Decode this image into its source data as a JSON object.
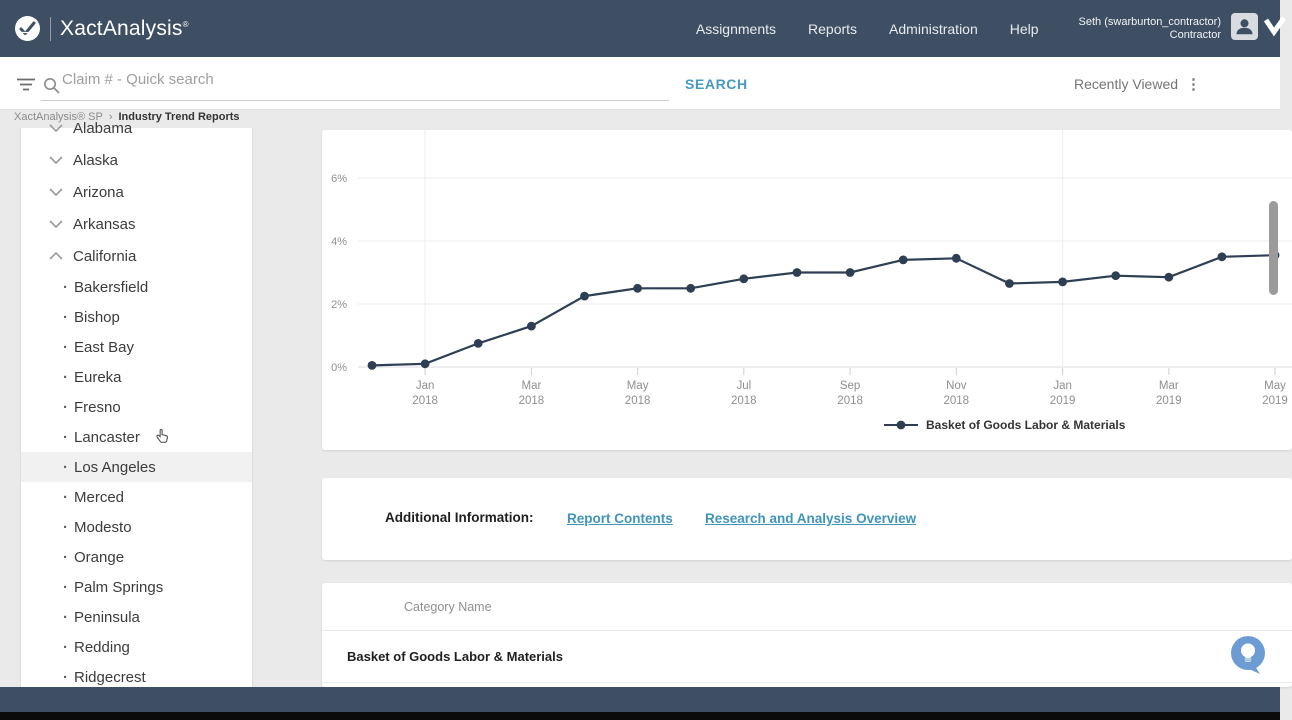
{
  "header": {
    "brand": "XactAnalysis",
    "brand_mark": "®",
    "nav": [
      "Assignments",
      "Reports",
      "Administration",
      "Help"
    ],
    "user_line1": "Seth (swarburton_contractor)",
    "user_line2": "Contractor"
  },
  "searchbar": {
    "placeholder": "Claim # - Quick search",
    "search_label": "SEARCH",
    "recently_viewed_label": "Recently Viewed",
    "kebab_glyph": "⋮"
  },
  "breadcrumb": {
    "root": "XactAnalysis® SP",
    "separator": "›",
    "current": "Industry Trend Reports"
  },
  "sidebar": {
    "items": [
      {
        "label": "Alabama",
        "type": "state",
        "chevron": "down",
        "partial": true
      },
      {
        "label": "Alaska",
        "type": "state",
        "chevron": "down"
      },
      {
        "label": "Arizona",
        "type": "state",
        "chevron": "down"
      },
      {
        "label": "Arkansas",
        "type": "state",
        "chevron": "down"
      },
      {
        "label": "California",
        "type": "state",
        "chevron": "up"
      },
      {
        "label": "Bakersfield",
        "type": "city"
      },
      {
        "label": "Bishop",
        "type": "city"
      },
      {
        "label": "East Bay",
        "type": "city"
      },
      {
        "label": "Eureka",
        "type": "city"
      },
      {
        "label": "Fresno",
        "type": "city"
      },
      {
        "label": "Lancaster",
        "type": "city",
        "cursor": true
      },
      {
        "label": "Los Angeles",
        "type": "city",
        "highlighted": true
      },
      {
        "label": "Merced",
        "type": "city"
      },
      {
        "label": "Modesto",
        "type": "city"
      },
      {
        "label": "Orange",
        "type": "city"
      },
      {
        "label": "Palm Springs",
        "type": "city"
      },
      {
        "label": "Peninsula",
        "type": "city"
      },
      {
        "label": "Redding",
        "type": "city"
      },
      {
        "label": "Ridgecrest",
        "type": "city"
      }
    ]
  },
  "chart_data": {
    "type": "line",
    "title": "",
    "categories": [
      "Dec 2017",
      "Jan 2018",
      "Feb 2018",
      "Mar 2018",
      "Apr 2018",
      "May 2018",
      "Jun 2018",
      "Jul 2018",
      "Aug 2018",
      "Sep 2018",
      "Oct 2018",
      "Nov 2018",
      "Dec 2018",
      "Jan 2019",
      "Feb 2019",
      "Mar 2019",
      "Apr 2019",
      "May 2019"
    ],
    "series": [
      {
        "name": "Basket of Goods Labor & Materials",
        "color": "#2e3f54",
        "values": [
          0.05,
          0.1,
          0.75,
          1.3,
          2.25,
          2.5,
          2.5,
          2.8,
          3.0,
          3.0,
          3.4,
          3.45,
          2.65,
          2.7,
          2.9,
          2.85,
          3.5,
          3.55
        ]
      }
    ],
    "ylabel": "",
    "xlabel": "",
    "ylim": [
      0,
      7.5
    ],
    "y_ticks": [
      "0%",
      "2%",
      "4%",
      "6%"
    ],
    "x_tick_indices": [
      1,
      3,
      5,
      7,
      9,
      11,
      13,
      15,
      17
    ],
    "x_tick_labels": [
      [
        "Jan",
        "2018"
      ],
      [
        "Mar",
        "2018"
      ],
      [
        "May",
        "2018"
      ],
      [
        "Jul",
        "2018"
      ],
      [
        "Sep",
        "2018"
      ],
      [
        "Nov",
        "2018"
      ],
      [
        "Jan",
        "2019"
      ],
      [
        "Mar",
        "2019"
      ],
      [
        "May",
        "2019"
      ]
    ],
    "year_gridline_indices": [
      1,
      13
    ],
    "grid": true,
    "legend_position": "bottom"
  },
  "info": {
    "label": "Additional Information:",
    "links": [
      "Report Contents",
      "Research and Analysis Overview"
    ]
  },
  "table": {
    "header": "Category Name",
    "rows": [
      "Basket of Goods Labor & Materials"
    ]
  },
  "colors": {
    "header_bar": "#3e4f63",
    "accent_link": "#4599c2",
    "series_line": "#2e3f54",
    "page_background": "#eaeaea",
    "highlight_row": "#f1f1f1",
    "chat_bubble": "#6d9bd3"
  }
}
